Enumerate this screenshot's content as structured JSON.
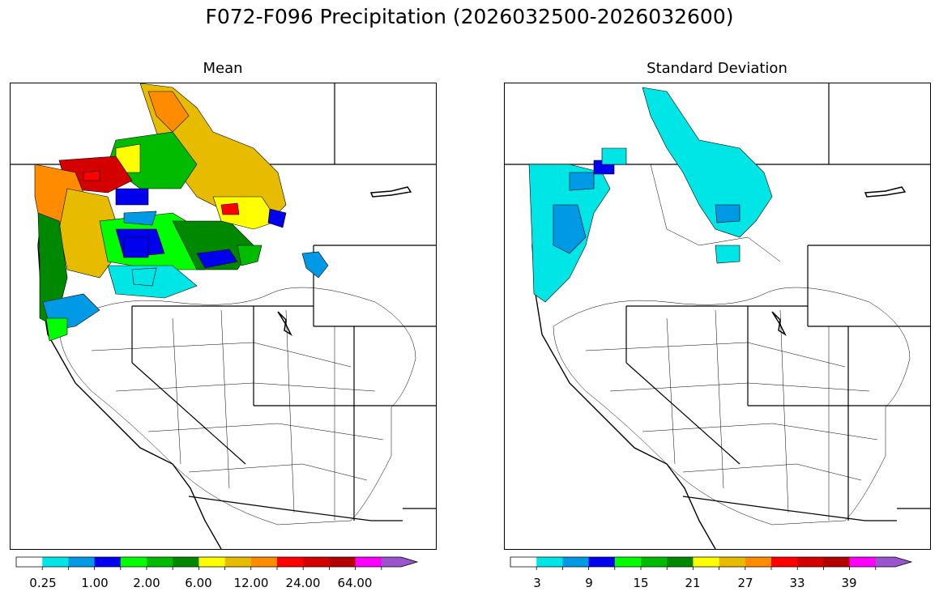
{
  "figure": {
    "title": "F072-F096 Precipitation (2026032500-2026032600)"
  },
  "panels": {
    "mean": {
      "title": "Mean",
      "colorbar_ticks": [
        "0.25",
        "1.00",
        "2.00",
        "6.00",
        "12.00",
        "24.00",
        "64.00"
      ]
    },
    "stdev": {
      "title": "Standard Deviation",
      "colorbar_ticks": [
        "3",
        "9",
        "15",
        "21",
        "27",
        "33",
        "39"
      ]
    }
  },
  "colorbar_colors": [
    "#ffffff",
    "#00e5e5",
    "#0099e6",
    "#0000ee",
    "#00ff00",
    "#00bb00",
    "#008800",
    "#ffff00",
    "#e6bb00",
    "#ff8c00",
    "#ff0000",
    "#d40000",
    "#b30000",
    "#ff00ff",
    "#9955cc"
  ],
  "colors": {
    "border": "#000000",
    "land": "#ffffff"
  }
}
